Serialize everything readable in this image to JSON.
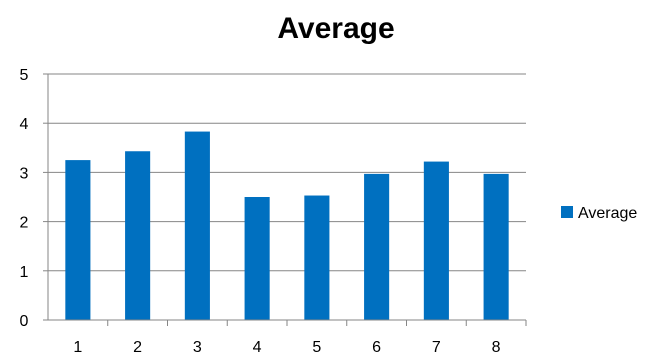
{
  "chart_data": {
    "type": "bar",
    "title": "Average",
    "xlabel": "",
    "ylabel": "",
    "categories": [
      "1",
      "2",
      "3",
      "4",
      "5",
      "6",
      "7",
      "8"
    ],
    "series": [
      {
        "name": "Average",
        "values": [
          3.25,
          3.43,
          3.83,
          2.5,
          2.53,
          2.97,
          3.22,
          2.97
        ],
        "color": "#0070c0"
      }
    ],
    "ylim": [
      0,
      5
    ],
    "yticks": [
      "0",
      "1",
      "2",
      "3",
      "4",
      "5"
    ],
    "grid": true,
    "legend_position": "right"
  }
}
